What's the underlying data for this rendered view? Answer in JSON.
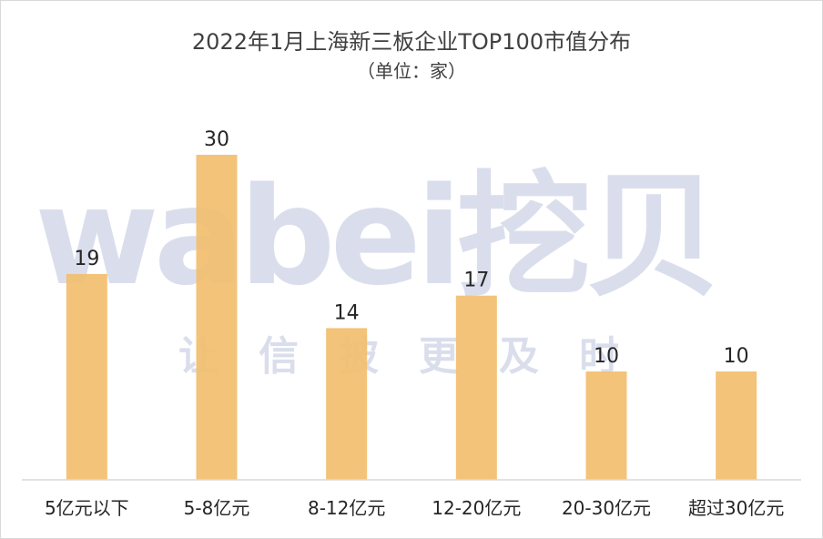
{
  "chart_data": {
    "type": "bar",
    "title": "2022年1月上海新三板企业TOP100市值分布",
    "subtitle": "（单位：家）",
    "categories": [
      "5亿元以下",
      "5-8亿元",
      "8-12亿元",
      "12-20亿元",
      "20-30亿元",
      "超过30亿元"
    ],
    "values": [
      19,
      30,
      14,
      17,
      10,
      10
    ],
    "ylim": [
      0,
      33
    ],
    "grid": false,
    "legend": "none",
    "bar_color": "#F2BE6E",
    "label_color": "#262626",
    "axis_color": "#D9D9D9"
  },
  "watermark": {
    "main": "wabei挖贝",
    "sub": "让信披更及时"
  }
}
